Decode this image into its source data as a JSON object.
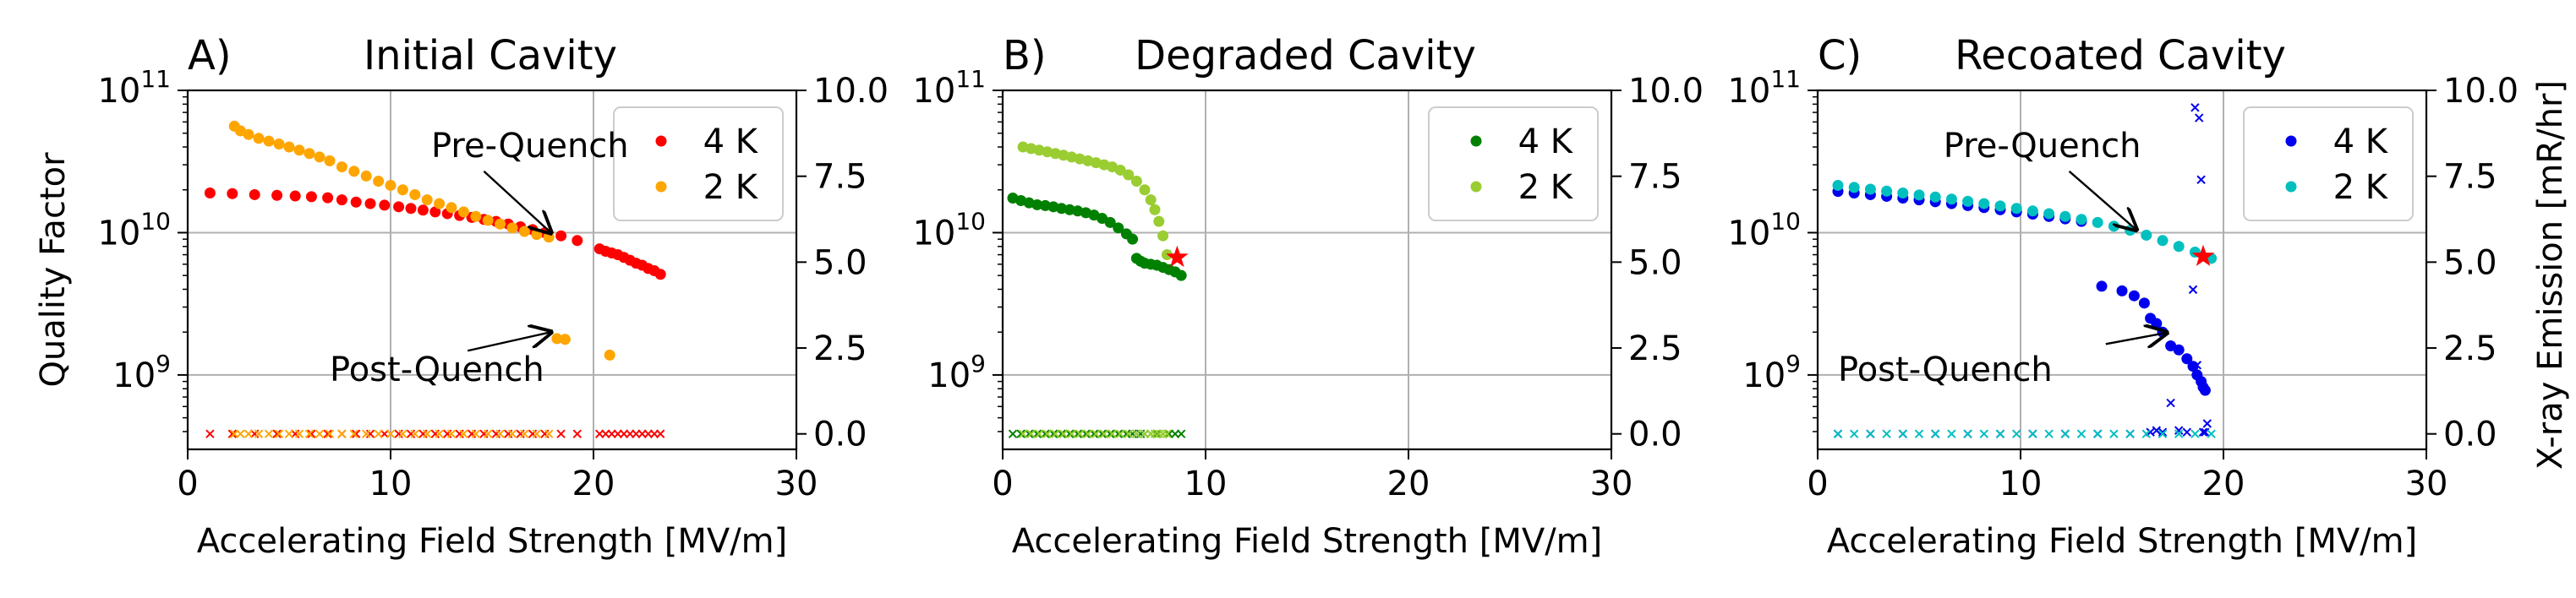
{
  "chart_data": [
    {
      "type": "scatter",
      "panel_label": "A)",
      "title": "Initial Cavity",
      "xlabel": "Accelerating Field Strength [MV/m]",
      "ylabel": "Quality Factor",
      "y2label": "",
      "xlim": [
        0,
        30
      ],
      "ylim": [
        300000000.0,
        100000000000.0
      ],
      "yscale": "log",
      "y2lim": [
        -0.45,
        10
      ],
      "x_ticks": [
        "0",
        "10",
        "20",
        "30"
      ],
      "y_ticks": [
        {
          "base": "10",
          "exp": "9"
        },
        {
          "base": "10",
          "exp": "10"
        },
        {
          "base": "10",
          "exp": "11"
        }
      ],
      "y2_ticks": [
        "0.0",
        "2.5",
        "5.0",
        "7.5",
        "10.0"
      ],
      "grid": true,
      "legend_position": "top-right",
      "series": [
        {
          "name": "4 K",
          "color": "#ff0000",
          "marker": "dot",
          "x": [
            1.1,
            2.2,
            3.3,
            4.4,
            5.3,
            6.1,
            6.9,
            7.6,
            8.3,
            9.0,
            9.7,
            10.4,
            11.0,
            11.6,
            12.2,
            12.8,
            13.4,
            14.0,
            14.6,
            15.2,
            15.8,
            16.4,
            17.0,
            17.6,
            18.4,
            19.2,
            20.3,
            20.6,
            20.9,
            21.2,
            21.5,
            21.8,
            22.1,
            22.4,
            22.7,
            23.0,
            23.3
          ],
          "y": [
            19000000000.0,
            18800000000.0,
            18500000000.0,
            18300000000.0,
            18100000000.0,
            17900000000.0,
            17600000000.0,
            17000000000.0,
            16400000000.0,
            16000000000.0,
            15600000000.0,
            15200000000.0,
            14800000000.0,
            14400000000.0,
            14000000000.0,
            13600000000.0,
            13200000000.0,
            12800000000.0,
            12400000000.0,
            12000000000.0,
            11500000000.0,
            11000000000.0,
            10500000000.0,
            10000000000.0,
            9500000000.0,
            8800000000.0,
            7700000000.0,
            7400000000.0,
            7200000000.0,
            7000000000.0,
            6700000000.0,
            6400000000.0,
            6100000000.0,
            5900000000.0,
            5600000000.0,
            5400000000.0,
            5100000000.0
          ]
        },
        {
          "name": "2 K",
          "color": "#ffa500",
          "marker": "dot",
          "x": [
            2.3,
            2.6,
            3.0,
            3.5,
            4.0,
            4.5,
            5.0,
            5.5,
            6.0,
            6.5,
            7.0,
            7.6,
            8.2,
            8.8,
            9.4,
            10.0,
            10.6,
            11.2,
            11.8,
            12.4,
            13.0,
            13.6,
            14.2,
            14.8,
            15.4,
            16.0,
            16.6,
            17.2,
            17.8,
            18.2,
            18.6,
            20.8
          ],
          "y": [
            56000000000.0,
            52000000000.0,
            49000000000.0,
            46000000000.0,
            44000000000.0,
            42000000000.0,
            40000000000.0,
            38000000000.0,
            36000000000.0,
            34000000000.0,
            32000000000.0,
            29000000000.0,
            27000000000.0,
            25000000000.0,
            23000000000.0,
            21500000000.0,
            20000000000.0,
            18500000000.0,
            17000000000.0,
            16000000000.0,
            15000000000.0,
            14000000000.0,
            13000000000.0,
            12200000000.0,
            11500000000.0,
            10800000000.0,
            10200000000.0,
            9700000000.0,
            9300000000.0,
            1800000000.0,
            1780000000.0,
            1380000000.0
          ]
        },
        {
          "name": "4 K X-ray",
          "color": "#ff0000",
          "marker": "x",
          "axis": "right",
          "x": [
            1.1,
            2.2,
            3.3,
            4.4,
            5.3,
            6.1,
            6.9,
            7.6,
            8.3,
            9.0,
            9.7,
            10.4,
            11.0,
            11.6,
            12.2,
            12.8,
            13.4,
            14.0,
            14.6,
            15.2,
            15.8,
            16.4,
            17.0,
            17.6,
            18.4,
            19.2,
            20.3,
            20.6,
            20.9,
            21.2,
            21.5,
            21.8,
            22.1,
            22.4,
            22.7,
            23.0,
            23.3
          ],
          "y": [
            0,
            0,
            0,
            0,
            0,
            0,
            0,
            0,
            0,
            0,
            0,
            0,
            0,
            0,
            0,
            0,
            0,
            0,
            0,
            0,
            0,
            0,
            0,
            0,
            0,
            0,
            0,
            0,
            0,
            0,
            0,
            0,
            0,
            0,
            0,
            0,
            0
          ]
        },
        {
          "name": "2 K X-ray",
          "color": "#ffa500",
          "marker": "x",
          "axis": "right",
          "x": [
            2.3,
            2.6,
            3.0,
            3.5,
            4.0,
            4.5,
            5.0,
            5.5,
            6.0,
            6.5,
            7.0,
            7.6,
            8.2,
            8.8,
            9.4,
            10.0,
            10.6,
            11.2,
            11.8,
            12.4,
            13.0,
            13.6,
            14.2,
            14.8,
            15.4,
            16.0,
            16.6,
            17.2,
            17.8
          ],
          "y": [
            0,
            0,
            0,
            0,
            0,
            0,
            0,
            0,
            0,
            0,
            0,
            0,
            0,
            0,
            0,
            0,
            0,
            0,
            0,
            0,
            0,
            0,
            0,
            0,
            0,
            0,
            0,
            0,
            0
          ]
        }
      ],
      "legend": [
        {
          "label": "4 K",
          "color": "#ff0000"
        },
        {
          "label": "2 K",
          "color": "#ffa500"
        }
      ],
      "annotations": [
        {
          "text": "Pre-Quench",
          "text_x": 12.0,
          "text_y": 41000000000.0,
          "arrow_from_x": 14.6,
          "arrow_from_y": 27000000000.0,
          "arrow_to_x": 17.9,
          "arrow_to_y": 10000000000.0
        },
        {
          "text": "Post-Quench",
          "text_x": 7.0,
          "text_y": 1100000000.0,
          "arrow_from_x": 13.8,
          "arrow_from_y": 1480000000.0,
          "arrow_to_x": 17.9,
          "arrow_to_y": 2000000000.0
        }
      ],
      "quench_markers": []
    },
    {
      "type": "scatter",
      "panel_label": "B)",
      "title": "Degraded Cavity",
      "xlabel": "Accelerating Field Strength [MV/m]",
      "ylabel": "",
      "y2label": "",
      "xlim": [
        0,
        30
      ],
      "ylim": [
        300000000.0,
        100000000000.0
      ],
      "yscale": "log",
      "y2lim": [
        -0.45,
        10
      ],
      "x_ticks": [
        "0",
        "10",
        "20",
        "30"
      ],
      "y_ticks": [
        {
          "base": "10",
          "exp": "9"
        },
        {
          "base": "10",
          "exp": "10"
        },
        {
          "base": "10",
          "exp": "11"
        }
      ],
      "y2_ticks": [
        "0.0",
        "2.5",
        "5.0",
        "7.5",
        "10.0"
      ],
      "grid": true,
      "legend_position": "top-right",
      "series": [
        {
          "name": "4 K",
          "color": "#008000",
          "marker": "dot",
          "x": [
            0.5,
            0.9,
            1.3,
            1.7,
            2.1,
            2.5,
            2.9,
            3.3,
            3.7,
            4.1,
            4.5,
            4.9,
            5.3,
            5.7,
            6.1,
            6.4,
            6.6,
            6.8,
            7.0,
            7.3,
            7.6,
            7.9,
            8.2,
            8.5,
            8.8
          ],
          "y": [
            17500000000.0,
            16800000000.0,
            16200000000.0,
            15700000000.0,
            15500000000.0,
            15200000000.0,
            14800000000.0,
            14500000000.0,
            14200000000.0,
            13800000000.0,
            13300000000.0,
            12600000000.0,
            11800000000.0,
            10800000000.0,
            9800000000.0,
            9000000000.0,
            6600000000.0,
            6300000000.0,
            6100000000.0,
            6000000000.0,
            5900000000.0,
            5700000000.0,
            5500000000.0,
            5300000000.0,
            5000000000.0
          ]
        },
        {
          "name": "2 K",
          "color": "#9acd32",
          "marker": "dot",
          "x": [
            1.0,
            1.4,
            1.8,
            2.2,
            2.6,
            3.0,
            3.4,
            3.8,
            4.2,
            4.6,
            5.0,
            5.4,
            5.8,
            6.2,
            6.6,
            7.0,
            7.3,
            7.5,
            7.7,
            7.9,
            8.1
          ],
          "y": [
            40000000000.0,
            39000000000.0,
            38000000000.0,
            37000000000.0,
            36000000000.0,
            35000000000.0,
            34000000000.0,
            33000000000.0,
            32000000000.0,
            31000000000.0,
            30000000000.0,
            29000000000.0,
            27500000000.0,
            25500000000.0,
            23000000000.0,
            20000000000.0,
            17000000000.0,
            14500000000.0,
            12000000000.0,
            9500000000.0,
            7000000000.0
          ]
        },
        {
          "name": "4 K X-ray",
          "color": "#008000",
          "marker": "x",
          "axis": "right",
          "x": [
            0.5,
            0.9,
            1.3,
            1.7,
            2.1,
            2.5,
            2.9,
            3.3,
            3.7,
            4.1,
            4.5,
            4.9,
            5.3,
            5.7,
            6.1,
            6.4,
            6.6,
            6.8,
            7.0,
            7.3,
            7.6,
            7.9,
            8.2,
            8.5,
            8.8
          ],
          "y": [
            0,
            0,
            0,
            0,
            0,
            0,
            0,
            0,
            0,
            0,
            0,
            0,
            0,
            0,
            0,
            0,
            0,
            0,
            0,
            0,
            0,
            0,
            0,
            0,
            0
          ]
        },
        {
          "name": "2 K X-ray",
          "color": "#9acd32",
          "marker": "x",
          "axis": "right",
          "x": [
            1.0,
            1.4,
            1.8,
            2.2,
            2.6,
            3.0,
            3.4,
            3.8,
            4.2,
            4.6,
            5.0,
            5.4,
            5.8,
            6.2,
            6.6,
            7.0,
            7.3,
            7.5,
            7.7,
            7.9,
            8.1
          ],
          "y": [
            0,
            0,
            0,
            0,
            0,
            0,
            0,
            0,
            0,
            0,
            0,
            0,
            0,
            0,
            0,
            0,
            0,
            0,
            0,
            0,
            0
          ]
        }
      ],
      "legend": [
        {
          "label": "4 K",
          "color": "#008000"
        },
        {
          "label": "2 K",
          "color": "#9acd32"
        }
      ],
      "annotations": [],
      "quench_markers": [
        {
          "x": 8.6,
          "y": 6700000000.0,
          "color": "#ff0000"
        }
      ]
    },
    {
      "type": "scatter",
      "panel_label": "C)",
      "title": "Recoated Cavity",
      "xlabel": "Accelerating Field Strength [MV/m]",
      "ylabel": "",
      "y2label": "X-ray Emission [mR/hr]",
      "xlim": [
        0,
        30
      ],
      "ylim": [
        300000000.0,
        100000000000.0
      ],
      "yscale": "log",
      "y2lim": [
        -0.45,
        10
      ],
      "x_ticks": [
        "0",
        "10",
        "20",
        "30"
      ],
      "y_ticks": [
        {
          "base": "10",
          "exp": "9"
        },
        {
          "base": "10",
          "exp": "10"
        },
        {
          "base": "10",
          "exp": "11"
        }
      ],
      "y2_ticks": [
        "0.0",
        "2.5",
        "5.0",
        "7.5",
        "10.0"
      ],
      "grid": true,
      "legend_position": "top-right",
      "series": [
        {
          "name": "4 K",
          "color": "#0000ee",
          "marker": "dot",
          "x": [
            1.0,
            1.8,
            2.6,
            3.4,
            4.2,
            5.0,
            5.8,
            6.6,
            7.4,
            8.2,
            9.0,
            9.8,
            10.6,
            11.4,
            12.2,
            13.0,
            14.0,
            15.0,
            15.6,
            16.1,
            16.4,
            16.7,
            17.0,
            17.4,
            17.8,
            18.2,
            18.5,
            18.7,
            18.9,
            19.0,
            19.1
          ],
          "y": [
            19500000000.0,
            19000000000.0,
            18500000000.0,
            18000000000.0,
            17500000000.0,
            17000000000.0,
            16500000000.0,
            16000000000.0,
            15500000000.0,
            15000000000.0,
            14500000000.0,
            14000000000.0,
            13500000000.0,
            13000000000.0,
            12500000000.0,
            12000000000.0,
            4200000000.0,
            3900000000.0,
            3600000000.0,
            3200000000.0,
            2500000000.0,
            2300000000.0,
            2000000000.0,
            1600000000.0,
            1500000000.0,
            1300000000.0,
            1150000000.0,
            1000000000.0,
            900000000.0,
            820000000.0,
            780000000.0
          ]
        },
        {
          "name": "2 K",
          "color": "#00bfbf",
          "marker": "dot",
          "x": [
            1.0,
            1.8,
            2.6,
            3.4,
            4.2,
            5.0,
            5.8,
            6.6,
            7.4,
            8.2,
            9.0,
            9.8,
            10.6,
            11.4,
            12.2,
            13.0,
            13.8,
            14.6,
            15.4,
            16.2,
            17.0,
            17.8,
            18.6,
            19.4
          ],
          "y": [
            21500000000.0,
            20800000000.0,
            20200000000.0,
            19600000000.0,
            19000000000.0,
            18400000000.0,
            17800000000.0,
            17200000000.0,
            16600000000.0,
            16000000000.0,
            15400000000.0,
            14800000000.0,
            14200000000.0,
            13600000000.0,
            13000000000.0,
            12400000000.0,
            11800000000.0,
            11100000000.0,
            10400000000.0,
            9600000000.0,
            8800000000.0,
            8000000000.0,
            7300000000.0,
            6600000000.0
          ]
        },
        {
          "name": "4 K X-ray",
          "color": "#0000ee",
          "marker": "x",
          "axis": "right",
          "x": [
            1.0,
            2.6,
            4.2,
            5.8,
            7.4,
            9.0,
            10.6,
            12.2,
            13.8,
            15.4,
            16.4,
            16.7,
            17.0,
            17.4,
            17.8,
            18.2,
            18.5,
            18.6,
            18.7,
            18.8,
            18.9,
            19.0,
            19.1,
            19.2
          ],
          "y": [
            0,
            0,
            0,
            0,
            0,
            0,
            0,
            0,
            0,
            0,
            0.05,
            0.1,
            0.05,
            0.9,
            0.1,
            0.05,
            4.2,
            9.5,
            2.0,
            9.2,
            7.4,
            0.05,
            0.05,
            0.3
          ]
        },
        {
          "name": "2 K X-ray",
          "color": "#00bfbf",
          "marker": "x",
          "axis": "right",
          "x": [
            1.0,
            1.8,
            2.6,
            3.4,
            4.2,
            5.0,
            5.8,
            6.6,
            7.4,
            8.2,
            9.0,
            9.8,
            10.6,
            11.4,
            12.2,
            13.0,
            13.8,
            14.6,
            15.4,
            16.2,
            17.0,
            17.8,
            18.6,
            19.4
          ],
          "y": [
            0,
            0,
            0,
            0,
            0,
            0,
            0,
            0,
            0,
            0,
            0,
            0,
            0,
            0,
            0,
            0,
            0,
            0,
            0,
            0,
            0,
            0,
            0,
            0
          ]
        }
      ],
      "legend": [
        {
          "label": "4 K",
          "color": "#0000ee"
        },
        {
          "label": "2 K",
          "color": "#00bfbf"
        }
      ],
      "annotations": [
        {
          "text": "Pre-Quench",
          "text_x": 6.2,
          "text_y": 41000000000.0,
          "arrow_from_x": 12.4,
          "arrow_from_y": 27000000000.0,
          "arrow_to_x": 15.7,
          "arrow_to_y": 10500000000.0
        },
        {
          "text": "Post-Quench",
          "text_x": 1.0,
          "text_y": 1100000000.0,
          "arrow_from_x": 14.2,
          "arrow_from_y": 1650000000.0,
          "arrow_to_x": 17.2,
          "arrow_to_y": 1980000000.0
        }
      ],
      "quench_markers": [
        {
          "x": 19.0,
          "y": 6800000000.0,
          "color": "#ff0000"
        }
      ]
    }
  ]
}
